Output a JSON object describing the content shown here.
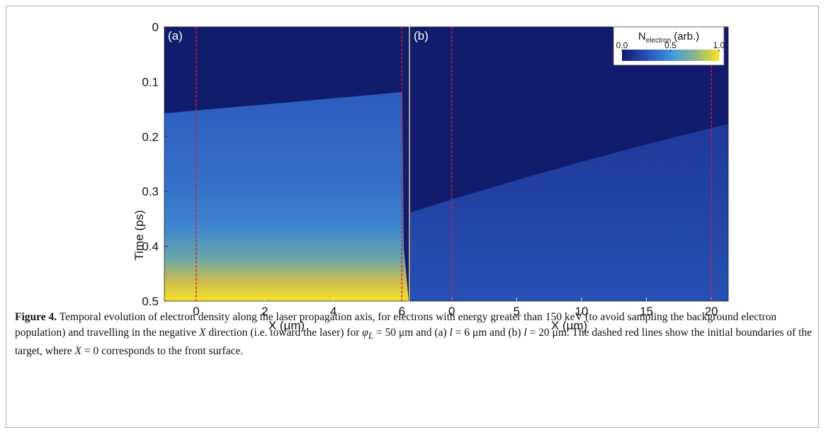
{
  "figure": {
    "ylabel": "Time (ps)",
    "ylim": [
      0,
      0.5
    ],
    "yticks": [
      0,
      0.1,
      0.2,
      0.3,
      0.4,
      0.5
    ],
    "panels": [
      {
        "label": "(a)",
        "xlabel": "X (μm)",
        "xlim": [
          -0.93,
          6.2
        ],
        "xticks": [
          0,
          2,
          4,
          6
        ],
        "boundaries": [
          0,
          6
        ]
      },
      {
        "label": "(b)",
        "xlabel": "X (μm)",
        "xlim": [
          -3.2,
          21.3
        ],
        "xticks": [
          0,
          5,
          10,
          15,
          20
        ],
        "boundaries": [
          0,
          20
        ]
      }
    ],
    "colorbar": {
      "label": {
        "main": "N",
        "sub": "electron",
        "rest": "(arb.)"
      },
      "lim": [
        0,
        1
      ],
      "ticks": [
        {
          "value": 0,
          "label": "0.0"
        },
        {
          "value": 0.5,
          "label": "0.5"
        },
        {
          "value": 1,
          "label": "1.0"
        }
      ]
    }
  },
  "caption": {
    "label": "Figure 4.",
    "runs": [
      "Temporal evolution of electron density along the laser propagation axis, for electrons with energy greater than 150 keV (to avoid sampling the background electron population) and travelling in the negative ",
      "X",
      " direction (i.e. toward the laser) for ",
      "φ",
      "L",
      " = 50 μm and (a) ",
      "l",
      " = 6 μm and (b) ",
      "l",
      " = 20 μm. The dashed red lines show the initial boundaries of the target, where ",
      "X",
      " = 0 corresponds to the front surface."
    ]
  }
}
